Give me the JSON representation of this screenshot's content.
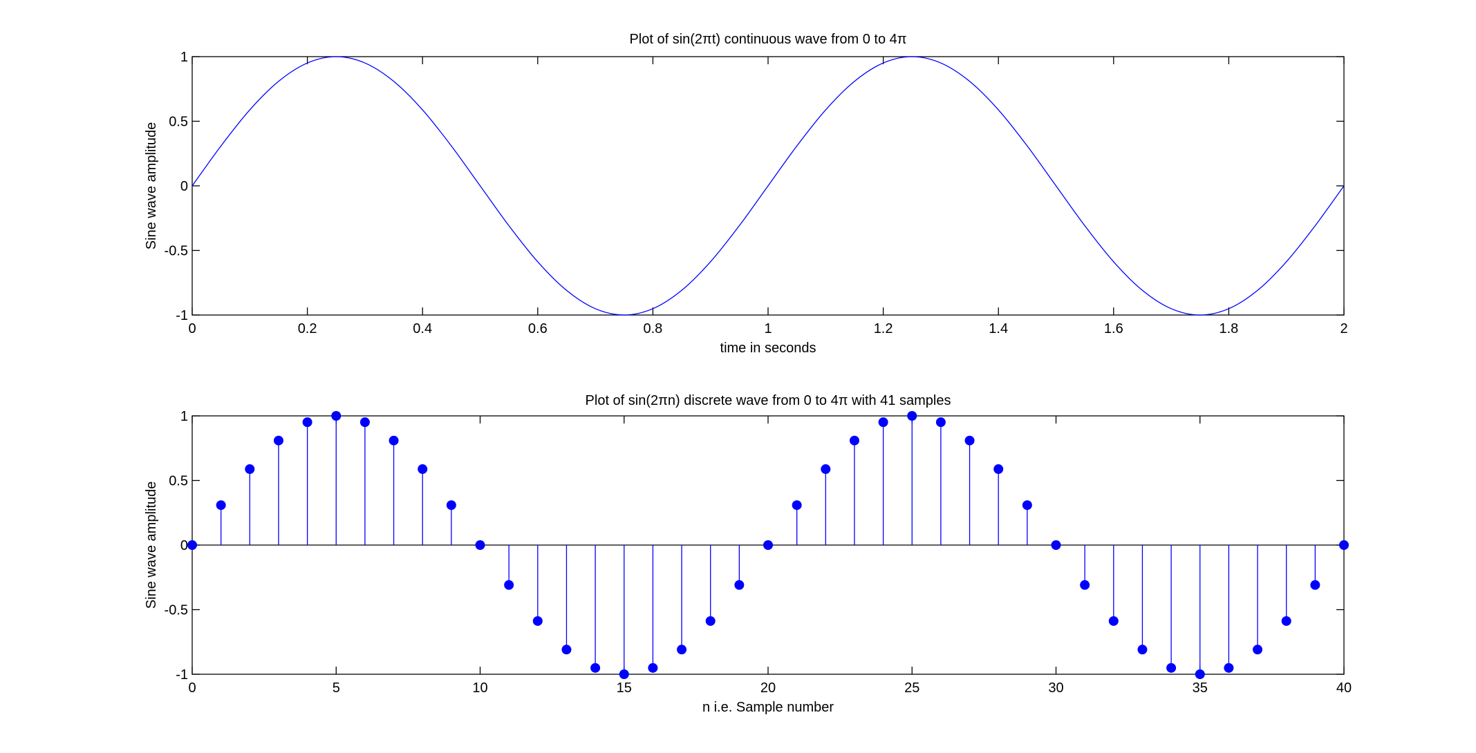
{
  "colors": {
    "series": "#0000ff",
    "axes": "#000000",
    "background": "#ffffff"
  },
  "chart_data": [
    {
      "type": "line",
      "title": "Plot of sin(2πt) continuous wave from 0 to 4π",
      "xlabel": "time in seconds",
      "ylabel": "Sine wave amplitude",
      "xlim": [
        0,
        2
      ],
      "ylim": [
        -1,
        1
      ],
      "xticks": [
        0,
        0.2,
        0.4,
        0.6,
        0.8,
        1,
        1.2,
        1.4,
        1.6,
        1.8,
        2
      ],
      "xtick_labels": [
        "0",
        "0.2",
        "0.4",
        "0.6",
        "0.8",
        "1",
        "1.2",
        "1.4",
        "1.6",
        "1.8",
        "2"
      ],
      "yticks": [
        -1,
        -0.5,
        0,
        0.5,
        1
      ],
      "ytick_labels": [
        "-1",
        "-0.5",
        "0",
        "0.5",
        "1"
      ],
      "grid": false,
      "series": [
        {
          "x": [
            0,
            0.05,
            0.1,
            0.15,
            0.2,
            0.25,
            0.3,
            0.35,
            0.4,
            0.45,
            0.5,
            0.55,
            0.6,
            0.65,
            0.7,
            0.75,
            0.8,
            0.85,
            0.9,
            0.95,
            1,
            1.05,
            1.1,
            1.15,
            1.2,
            1.25,
            1.3,
            1.35,
            1.4,
            1.45,
            1.5,
            1.55,
            1.6,
            1.65,
            1.7,
            1.75,
            1.8,
            1.85,
            1.9,
            1.95,
            2
          ],
          "y": [
            0,
            0.309,
            0.588,
            0.809,
            0.951,
            1,
            0.951,
            0.809,
            0.588,
            0.309,
            0,
            -0.309,
            -0.588,
            -0.809,
            -0.951,
            -1,
            -0.951,
            -0.809,
            -0.588,
            -0.309,
            0,
            0.309,
            0.588,
            0.809,
            0.951,
            1,
            0.951,
            0.809,
            0.588,
            0.309,
            0,
            -0.309,
            -0.588,
            -0.809,
            -0.951,
            -1,
            -0.951,
            -0.809,
            -0.588,
            -0.309,
            0
          ]
        }
      ]
    },
    {
      "type": "stem",
      "title": "Plot of sin(2πn) discrete wave from 0 to 4π with 41 samples",
      "xlabel": "n i.e. Sample number",
      "ylabel": "Sine wave amplitude",
      "xlim": [
        0,
        40
      ],
      "ylim": [
        -1,
        1
      ],
      "xticks": [
        0,
        5,
        10,
        15,
        20,
        25,
        30,
        35,
        40
      ],
      "xtick_labels": [
        "0",
        "5",
        "10",
        "15",
        "20",
        "25",
        "30",
        "35",
        "40"
      ],
      "yticks": [
        -1,
        -0.5,
        0,
        0.5,
        1
      ],
      "ytick_labels": [
        "-1",
        "-0.5",
        "0",
        "0.5",
        "1"
      ],
      "grid": false,
      "series": [
        {
          "x": [
            0,
            1,
            2,
            3,
            4,
            5,
            6,
            7,
            8,
            9,
            10,
            11,
            12,
            13,
            14,
            15,
            16,
            17,
            18,
            19,
            20,
            21,
            22,
            23,
            24,
            25,
            26,
            27,
            28,
            29,
            30,
            31,
            32,
            33,
            34,
            35,
            36,
            37,
            38,
            39,
            40
          ],
          "y": [
            0,
            0.309,
            0.588,
            0.809,
            0.951,
            1,
            0.951,
            0.809,
            0.588,
            0.309,
            0,
            -0.309,
            -0.588,
            -0.809,
            -0.951,
            -1,
            -0.951,
            -0.809,
            -0.588,
            -0.309,
            0,
            0.309,
            0.588,
            0.809,
            0.951,
            1,
            0.951,
            0.809,
            0.588,
            0.309,
            0,
            -0.309,
            -0.588,
            -0.809,
            -0.951,
            -1,
            -0.951,
            -0.809,
            -0.588,
            -0.309,
            0
          ]
        }
      ]
    }
  ]
}
